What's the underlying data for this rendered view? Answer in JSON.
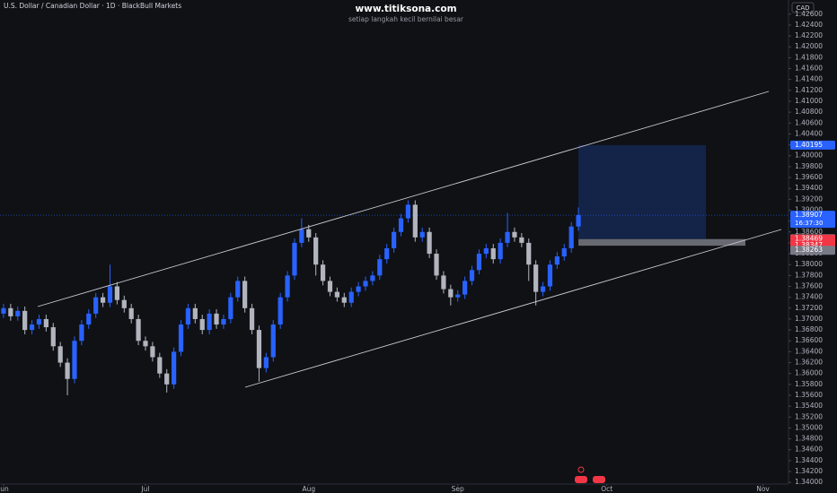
{
  "chart_data": {
    "type": "candlestick",
    "title": "U.S. Dollar / Canadian Dollar · 1D · BlackBull Markets",
    "watermark": "www.titiksona.com",
    "subtitle": "setiap langkah kecil bernilai besar",
    "currency": "CAD",
    "countdown": "16:37:30",
    "up_color": "#2962ff",
    "down_color": "#b2b5be",
    "grid": false,
    "xlim": [
      -0.5,
      110.6
    ],
    "xticks": [
      {
        "value": 0,
        "label": "Jun"
      },
      {
        "value": 20,
        "label": "Jul"
      },
      {
        "value": 43,
        "label": "Aug"
      },
      {
        "value": 64,
        "label": "Sep"
      },
      {
        "value": 85,
        "label": "Oct"
      },
      {
        "value": 107,
        "label": "Nov"
      }
    ],
    "ylim": [
      1.3397,
      1.4286
    ],
    "yticks": [
      {
        "value": 1.426,
        "label": "1.42600"
      },
      {
        "value": 1.424,
        "label": "1.42400"
      },
      {
        "value": 1.422,
        "label": "1.42200"
      },
      {
        "value": 1.42,
        "label": "1.42000"
      },
      {
        "value": 1.418,
        "label": "1.41800"
      },
      {
        "value": 1.416,
        "label": "1.41600"
      },
      {
        "value": 1.414,
        "label": "1.41400"
      },
      {
        "value": 1.412,
        "label": "1.41200"
      },
      {
        "value": 1.41,
        "label": "1.41000"
      },
      {
        "value": 1.408,
        "label": "1.40800"
      },
      {
        "value": 1.406,
        "label": "1.40600"
      },
      {
        "value": 1.404,
        "label": "1.40400"
      },
      {
        "value": 1.402,
        "label": "1.40200"
      },
      {
        "value": 1.4,
        "label": "1.40000"
      },
      {
        "value": 1.398,
        "label": "1.39800"
      },
      {
        "value": 1.396,
        "label": "1.39600"
      },
      {
        "value": 1.394,
        "label": "1.39400"
      },
      {
        "value": 1.392,
        "label": "1.39200"
      },
      {
        "value": 1.39,
        "label": "1.39000"
      },
      {
        "value": 1.388,
        "label": "1.38800"
      },
      {
        "value": 1.386,
        "label": "1.38600"
      },
      {
        "value": 1.384,
        "label": "1.38400"
      },
      {
        "value": 1.382,
        "label": "1.38200"
      },
      {
        "value": 1.38,
        "label": "1.38000"
      },
      {
        "value": 1.378,
        "label": "1.37800"
      },
      {
        "value": 1.376,
        "label": "1.37600"
      },
      {
        "value": 1.374,
        "label": "1.37400"
      },
      {
        "value": 1.372,
        "label": "1.37200"
      },
      {
        "value": 1.37,
        "label": "1.37000"
      },
      {
        "value": 1.368,
        "label": "1.36800"
      },
      {
        "value": 1.366,
        "label": "1.36600"
      },
      {
        "value": 1.364,
        "label": "1.36400"
      },
      {
        "value": 1.362,
        "label": "1.36200"
      },
      {
        "value": 1.36,
        "label": "1.36000"
      },
      {
        "value": 1.358,
        "label": "1.35800"
      },
      {
        "value": 1.356,
        "label": "1.35600"
      },
      {
        "value": 1.354,
        "label": "1.35400"
      },
      {
        "value": 1.352,
        "label": "1.35200"
      },
      {
        "value": 1.35,
        "label": "1.35000"
      },
      {
        "value": 1.348,
        "label": "1.34800"
      },
      {
        "value": 1.346,
        "label": "1.34600"
      },
      {
        "value": 1.344,
        "label": "1.34400"
      },
      {
        "value": 1.342,
        "label": "1.34200"
      },
      {
        "value": 1.34,
        "label": "1.34000"
      }
    ],
    "price_labels": [
      {
        "value": 1.40195,
        "label": "1.40195",
        "color": "#2962ff"
      },
      {
        "value": 1.38907,
        "label": "1.38907",
        "color": "#2962ff"
      },
      {
        "value": 1.38472,
        "label": "1.38472",
        "color": "#d1d4dc"
      },
      {
        "value": 1.38469,
        "label": "1.38469",
        "color": "#f23645"
      },
      {
        "value": 1.38347,
        "label": "1.38347",
        "color": "#f23645"
      },
      {
        "value": 1.38263,
        "label": "1.38263",
        "color": "#787b86"
      }
    ],
    "open": [
      1.371,
      1.372,
      1.3705,
      1.3715,
      1.368,
      1.369,
      1.37,
      1.3685,
      1.365,
      1.362,
      1.359,
      1.366,
      1.369,
      1.371,
      1.374,
      1.373,
      1.376,
      1.3735,
      1.372,
      1.37,
      1.366,
      1.365,
      1.363,
      1.36,
      1.358,
      1.364,
      1.369,
      1.372,
      1.37,
      1.368,
      1.371,
      1.369,
      1.37,
      1.374,
      1.377,
      1.372,
      1.368,
      1.361,
      1.363,
      1.369,
      1.374,
      1.378,
      1.384,
      1.3865,
      1.385,
      1.38,
      1.377,
      1.375,
      1.374,
      1.373,
      1.375,
      1.376,
      1.377,
      1.378,
      1.381,
      1.383,
      1.386,
      1.3885,
      1.391,
      1.385,
      1.386,
      1.382,
      1.378,
      1.3755,
      1.374,
      1.3745,
      1.377,
      1.379,
      1.382,
      1.383,
      1.381,
      1.384,
      1.386,
      1.385,
      1.384,
      1.38,
      1.375,
      1.376,
      1.38,
      1.3815,
      1.383,
      1.387
    ],
    "high": [
      1.3728,
      1.3728,
      1.3723,
      1.3723,
      1.3698,
      1.3708,
      1.3708,
      1.3693,
      1.3658,
      1.3628,
      1.3668,
      1.3698,
      1.3718,
      1.3748,
      1.3748,
      1.38,
      1.3768,
      1.3743,
      1.3728,
      1.3708,
      1.3668,
      1.3658,
      1.3638,
      1.3608,
      1.3648,
      1.3698,
      1.3728,
      1.3728,
      1.3708,
      1.3718,
      1.3718,
      1.3708,
      1.3748,
      1.3778,
      1.3778,
      1.3728,
      1.3688,
      1.3638,
      1.3698,
      1.3748,
      1.3788,
      1.3848,
      1.3885,
      1.3873,
      1.3858,
      1.3808,
      1.3778,
      1.3758,
      1.3748,
      1.3758,
      1.3768,
      1.3778,
      1.3788,
      1.3818,
      1.3838,
      1.3868,
      1.3893,
      1.3918,
      1.3918,
      1.3868,
      1.3868,
      1.3828,
      1.3788,
      1.3763,
      1.3753,
      1.3778,
      1.3798,
      1.3828,
      1.3838,
      1.3838,
      1.3848,
      1.3895,
      1.3868,
      1.3858,
      1.3848,
      1.3808,
      1.3768,
      1.3808,
      1.3823,
      1.3838,
      1.3878,
      1.3905
    ],
    "low": [
      1.3702,
      1.3697,
      1.3697,
      1.3672,
      1.3672,
      1.3682,
      1.3677,
      1.3642,
      1.3612,
      1.356,
      1.3582,
      1.3652,
      1.3682,
      1.3702,
      1.3722,
      1.3722,
      1.3727,
      1.3712,
      1.3692,
      1.3652,
      1.3642,
      1.3622,
      1.3592,
      1.3565,
      1.3572,
      1.3632,
      1.3682,
      1.3692,
      1.3672,
      1.3672,
      1.3682,
      1.3682,
      1.3692,
      1.3732,
      1.3712,
      1.3672,
      1.3585,
      1.3602,
      1.3622,
      1.3682,
      1.3732,
      1.3772,
      1.3832,
      1.3842,
      1.378,
      1.3762,
      1.3742,
      1.3732,
      1.3722,
      1.3722,
      1.3742,
      1.3752,
      1.3762,
      1.3772,
      1.3802,
      1.3822,
      1.3852,
      1.3877,
      1.3842,
      1.3842,
      1.3812,
      1.3772,
      1.3747,
      1.3725,
      1.3732,
      1.3737,
      1.3762,
      1.3782,
      1.3812,
      1.3802,
      1.3802,
      1.3832,
      1.3842,
      1.3832,
      1.377,
      1.3725,
      1.3742,
      1.3752,
      1.3792,
      1.3807,
      1.3822,
      1.3862
    ],
    "close": [
      1.372,
      1.3705,
      1.3715,
      1.368,
      1.369,
      1.37,
      1.3685,
      1.365,
      1.362,
      1.359,
      1.366,
      1.369,
      1.371,
      1.374,
      1.373,
      1.376,
      1.3735,
      1.372,
      1.37,
      1.366,
      1.365,
      1.363,
      1.36,
      1.358,
      1.364,
      1.369,
      1.372,
      1.37,
      1.368,
      1.371,
      1.369,
      1.37,
      1.374,
      1.377,
      1.372,
      1.368,
      1.361,
      1.363,
      1.369,
      1.374,
      1.378,
      1.384,
      1.3865,
      1.385,
      1.38,
      1.377,
      1.375,
      1.374,
      1.373,
      1.375,
      1.376,
      1.377,
      1.378,
      1.381,
      1.383,
      1.386,
      1.3885,
      1.391,
      1.385,
      1.386,
      1.382,
      1.378,
      1.3755,
      1.374,
      1.3745,
      1.377,
      1.379,
      1.382,
      1.383,
      1.381,
      1.384,
      1.386,
      1.385,
      1.384,
      1.38,
      1.375,
      1.376,
      1.38,
      1.3815,
      1.383,
      1.387,
      1.3891
    ]
  }
}
